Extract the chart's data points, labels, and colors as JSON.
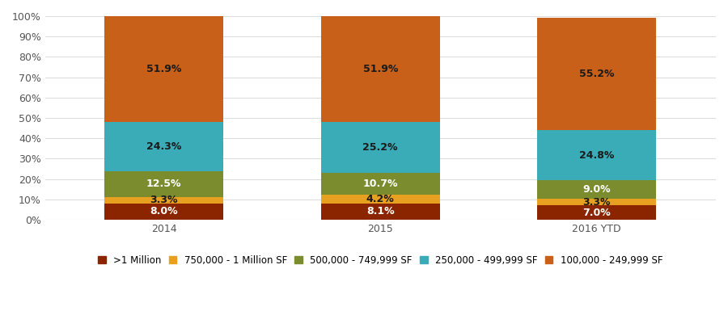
{
  "categories": [
    "2014",
    "2015",
    "2016 YTD"
  ],
  "series": [
    {
      "label": ">1 Million",
      "color": "#8B2500",
      "values": [
        8.0,
        8.1,
        7.0
      ],
      "label_color": "white"
    },
    {
      "label": "750,000 - 1 Million SF",
      "color": "#E8A020",
      "values": [
        3.3,
        4.2,
        3.3
      ],
      "label_color": "#1a1a1a"
    },
    {
      "label": "500,000 - 749,999 SF",
      "color": "#7A8C2E",
      "values": [
        12.5,
        10.7,
        9.0
      ],
      "label_color": "white"
    },
    {
      "label": "250,000 - 499,999 SF",
      "color": "#3AACB8",
      "values": [
        24.3,
        25.2,
        24.8
      ],
      "label_color": "#1a1a1a"
    },
    {
      "label": "100,000 - 249,999 SF",
      "color": "#C8601A",
      "values": [
        51.9,
        51.9,
        55.2
      ],
      "label_color": "#1a1a1a"
    }
  ],
  "ylim": [
    0,
    100
  ],
  "yticks": [
    0,
    10,
    20,
    30,
    40,
    50,
    60,
    70,
    80,
    90,
    100
  ],
  "ytick_labels": [
    "0%",
    "10%",
    "20%",
    "30%",
    "40%",
    "50%",
    "60%",
    "70%",
    "80%",
    "90%",
    "100%"
  ],
  "background_color": "#FFFFFF",
  "bar_width": 0.55,
  "label_fontsize": 9,
  "label_fontweight": "bold",
  "tick_fontsize": 9,
  "legend_fontsize": 8.5,
  "grid_color": "#DDDDDD",
  "x_positions": [
    0,
    1,
    2
  ]
}
